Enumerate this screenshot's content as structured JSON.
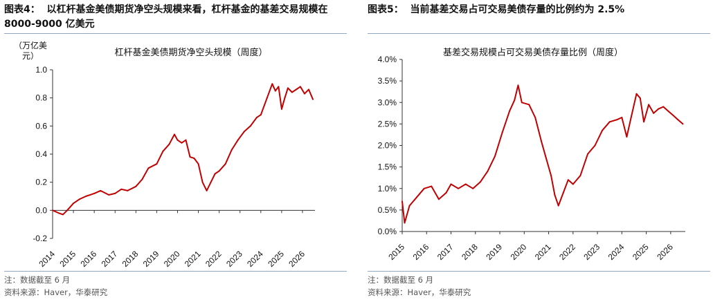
{
  "left": {
    "exhibit_title": "图表4：  以杠杆基金美债期货净空头规模来看，杠杆基金的基差交易规模在 8000-9000 亿美元",
    "note": "注：数据截至 6 月",
    "source": "资料来源：Haver，华泰研究"
  },
  "right": {
    "exhibit_title": "图表5：  当前基差交易占可交易美债存量的比例约为 2.5%",
    "note": "注：数据截至 6 月",
    "source": "资料来源：Haver，华泰研究"
  },
  "series_color": "#c00000",
  "chart_data": [
    {
      "type": "line",
      "title": "杠杆基金美债期货净空头规模（周度）",
      "ylabel": "（万亿美元）",
      "ylim": [
        -0.2,
        1.0
      ],
      "yticks": [
        "-0.2",
        "0.0",
        "0.2",
        "0.4",
        "0.6",
        "0.8",
        "1.0"
      ],
      "xlim": [
        2014.0,
        2026.6
      ],
      "xticks": [
        "2014",
        "2015",
        "2016",
        "2017",
        "2018",
        "2019",
        "2020",
        "2021",
        "2022",
        "2023",
        "2024",
        "2025",
        "2026"
      ],
      "grid": false,
      "x": [
        2014.0,
        2014.3,
        2014.5,
        2014.7,
        2015.0,
        2015.3,
        2015.6,
        2016.0,
        2016.3,
        2016.7,
        2017.0,
        2017.3,
        2017.6,
        2018.0,
        2018.3,
        2018.6,
        2019.0,
        2019.3,
        2019.6,
        2019.85,
        2020.0,
        2020.2,
        2020.4,
        2020.6,
        2020.8,
        2021.0,
        2021.2,
        2021.4,
        2021.6,
        2021.8,
        2022.0,
        2022.3,
        2022.6,
        2022.9,
        2023.2,
        2023.5,
        2023.8,
        2024.0,
        2024.3,
        2024.55,
        2024.7,
        2024.85,
        2025.0,
        2025.15,
        2025.3,
        2025.5,
        2025.7,
        2025.9,
        2026.1,
        2026.3,
        2026.5
      ],
      "y": [
        0.0,
        -0.02,
        -0.03,
        0.0,
        0.05,
        0.08,
        0.1,
        0.12,
        0.14,
        0.11,
        0.12,
        0.15,
        0.14,
        0.17,
        0.22,
        0.3,
        0.33,
        0.42,
        0.47,
        0.54,
        0.5,
        0.48,
        0.5,
        0.38,
        0.37,
        0.33,
        0.2,
        0.14,
        0.2,
        0.26,
        0.28,
        0.33,
        0.43,
        0.5,
        0.56,
        0.6,
        0.66,
        0.68,
        0.8,
        0.9,
        0.85,
        0.88,
        0.72,
        0.8,
        0.87,
        0.84,
        0.86,
        0.88,
        0.83,
        0.86,
        0.79
      ]
    },
    {
      "type": "line",
      "title": "基差交易规模占可交易美债存量比例（周度）",
      "ylim": [
        0.0,
        4.0
      ],
      "yticks": [
        "0.0%",
        "0.5%",
        "1.0%",
        "1.5%",
        "2.0%",
        "2.5%",
        "3.0%",
        "3.5%",
        "4.0%"
      ],
      "xlim": [
        2015.0,
        2026.6
      ],
      "xticks": [
        "2015",
        "2016",
        "2017",
        "2018",
        "2019",
        "2020",
        "2021",
        "2022",
        "2023",
        "2024",
        "2025",
        "2026"
      ],
      "grid": false,
      "x": [
        2015.0,
        2015.1,
        2015.3,
        2015.6,
        2015.9,
        2016.2,
        2016.5,
        2016.8,
        2017.0,
        2017.3,
        2017.6,
        2017.9,
        2018.2,
        2018.5,
        2018.8,
        2019.1,
        2019.4,
        2019.6,
        2019.75,
        2019.9,
        2020.2,
        2020.45,
        2020.7,
        2020.9,
        2021.1,
        2021.25,
        2021.4,
        2021.6,
        2021.8,
        2022.0,
        2022.3,
        2022.6,
        2022.9,
        2023.2,
        2023.5,
        2023.8,
        2024.0,
        2024.2,
        2024.4,
        2024.6,
        2024.75,
        2024.9,
        2025.1,
        2025.3,
        2025.5,
        2025.7,
        2025.9,
        2026.1,
        2026.3,
        2026.5
      ],
      "y": [
        0.7,
        0.2,
        0.6,
        0.8,
        1.0,
        1.05,
        0.75,
        0.9,
        1.1,
        1.0,
        1.1,
        1.0,
        1.15,
        1.4,
        1.75,
        2.3,
        2.8,
        3.05,
        3.4,
        3.0,
        2.95,
        2.65,
        2.1,
        1.7,
        1.3,
        0.85,
        0.6,
        0.9,
        1.2,
        1.1,
        1.3,
        1.8,
        2.0,
        2.35,
        2.55,
        2.6,
        2.65,
        2.2,
        2.7,
        3.2,
        3.1,
        2.55,
        2.95,
        2.75,
        2.85,
        2.9,
        2.8,
        2.7,
        2.6,
        2.5
      ]
    }
  ]
}
